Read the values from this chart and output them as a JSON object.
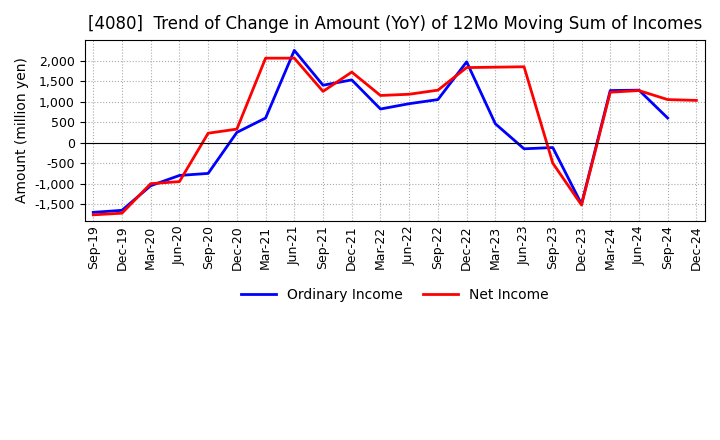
{
  "title": "[4080]  Trend of Change in Amount (YoY) of 12Mo Moving Sum of Incomes",
  "ylabel": "Amount (million yen)",
  "x_labels": [
    "Sep-19",
    "Dec-19",
    "Mar-20",
    "Jun-20",
    "Sep-20",
    "Dec-20",
    "Mar-21",
    "Jun-21",
    "Sep-21",
    "Dec-21",
    "Mar-22",
    "Jun-22",
    "Sep-22",
    "Dec-22",
    "Mar-23",
    "Jun-23",
    "Sep-23",
    "Dec-23",
    "Mar-24",
    "Jun-24",
    "Sep-24",
    "Dec-24"
  ],
  "ordinary_income": [
    -1700,
    -1650,
    -1050,
    -800,
    -750,
    250,
    600,
    2250,
    1400,
    1530,
    820,
    950,
    1050,
    1970,
    460,
    -150,
    -120,
    -1500,
    1270,
    1280,
    600,
    null
  ],
  "net_income": [
    -1760,
    -1720,
    -1000,
    -950,
    230,
    330,
    2060,
    2060,
    1250,
    1720,
    1150,
    1180,
    1280,
    1830,
    1840,
    1850,
    -500,
    -1520,
    1230,
    1270,
    1050,
    1030
  ],
  "ylim": [
    -1900,
    2500
  ],
  "yticks": [
    -1500,
    -1000,
    -500,
    0,
    500,
    1000,
    1500,
    2000
  ],
  "line_color_ordinary": "#0000FF",
  "line_color_net": "#FF0000",
  "grid_color": "#AAAAAA",
  "background_color": "#FFFFFF",
  "title_fontsize": 12,
  "label_fontsize": 10,
  "tick_fontsize": 9,
  "legend_labels": [
    "Ordinary Income",
    "Net Income"
  ]
}
